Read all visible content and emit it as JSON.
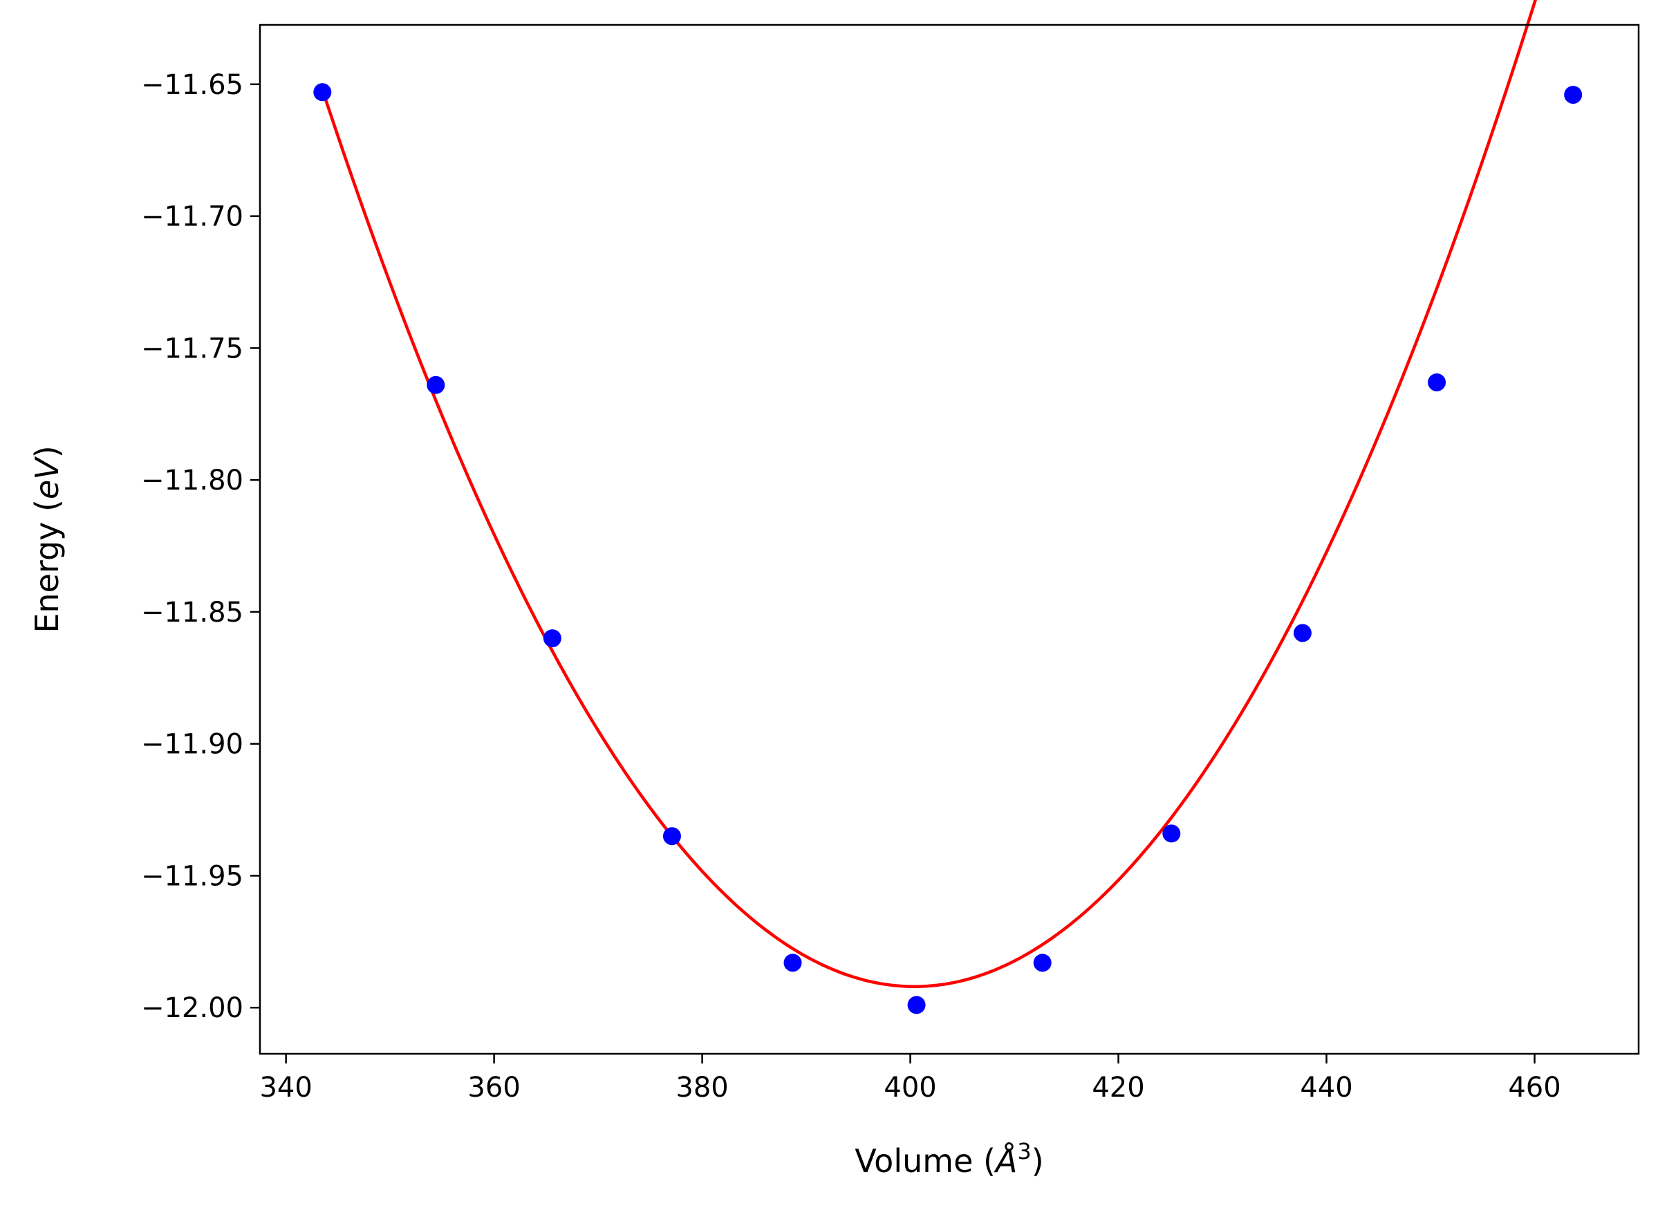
{
  "chart_data": {
    "type": "scatter",
    "xlabel": {
      "prefix": "Volume (",
      "italic": "Å",
      "superscript": "3",
      "suffix": ")"
    },
    "ylabel": {
      "prefix": "Energy (",
      "italic": "eV",
      "suffix": ")"
    },
    "xlim": [
      337.5,
      470
    ],
    "ylim": [
      -12.0175,
      -11.6275
    ],
    "x_ticks": [
      340,
      360,
      380,
      400,
      420,
      440,
      460
    ],
    "x_tick_labels": [
      "340",
      "360",
      "380",
      "400",
      "420",
      "440",
      "460"
    ],
    "y_ticks": [
      -11.65,
      -11.7,
      -11.75,
      -11.8,
      -11.85,
      -11.9,
      -11.95,
      -12.0
    ],
    "y_tick_labels": [
      "−11.65",
      "−11.70",
      "−11.75",
      "−11.80",
      "−11.85",
      "−11.90",
      "−11.95",
      "−12.00"
    ],
    "grid": false,
    "legend": "none",
    "series": [
      {
        "type": "scatter",
        "color": "#0000ff",
        "x": [
          343.5,
          354.4,
          365.6,
          377.1,
          388.7,
          400.6,
          412.7,
          425.1,
          437.7,
          450.6,
          463.7
        ],
        "y": [
          -11.653,
          -11.764,
          -11.86,
          -11.935,
          -11.983,
          -11.999,
          -11.983,
          -11.934,
          -11.858,
          -11.763,
          -11.654
        ]
      },
      {
        "type": "line",
        "color": "#ff0000",
        "fit": "quadratic",
        "x_range": [
          343.5,
          463.7
        ],
        "vertex": [
          400.4,
          -11.992
        ],
        "curvature": 0.000105
      }
    ]
  }
}
